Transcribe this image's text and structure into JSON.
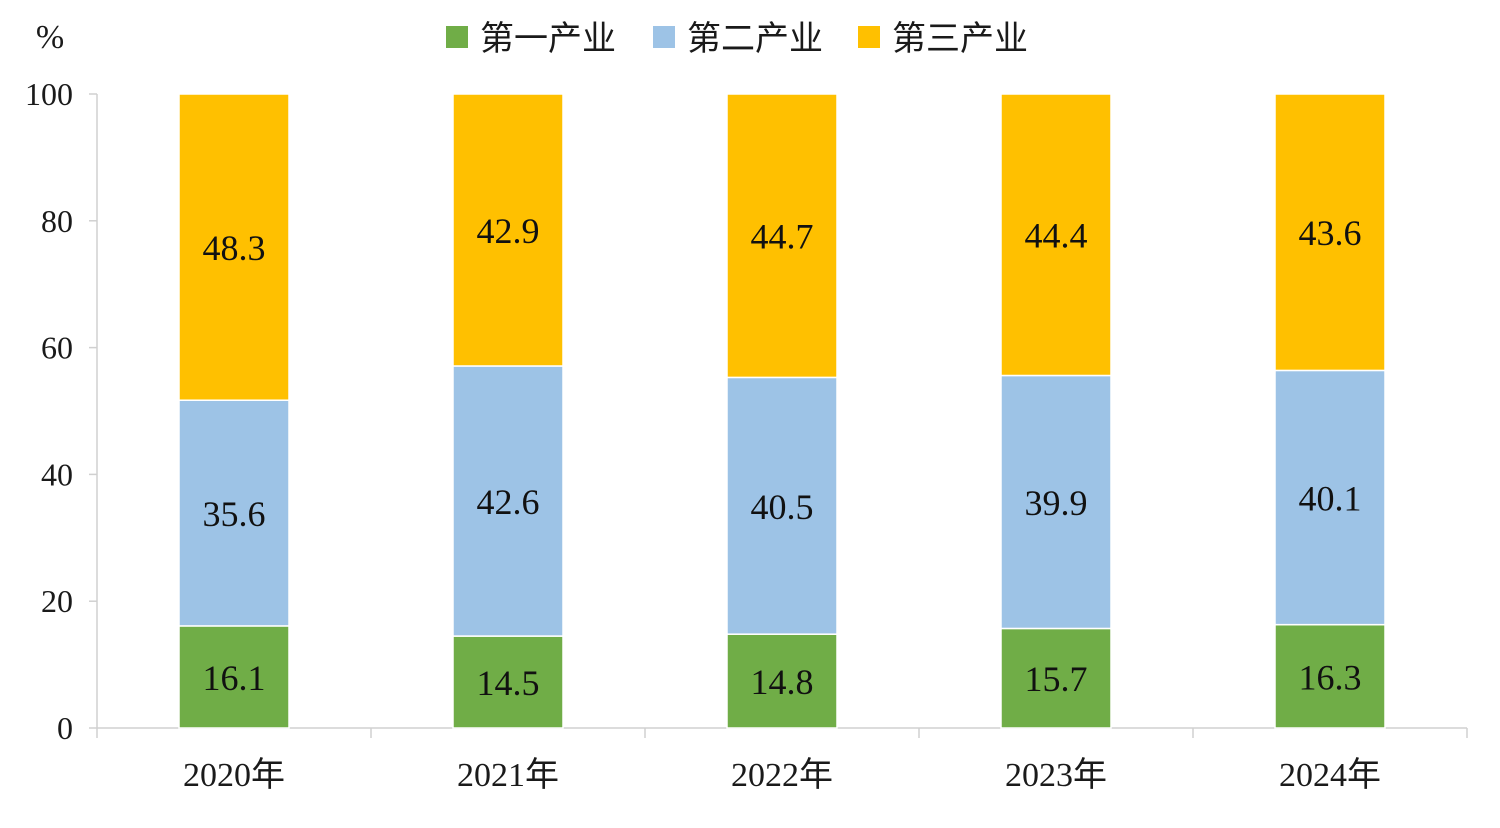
{
  "chart_data": {
    "type": "bar",
    "stacked": true,
    "unit": "%",
    "categories": [
      "2020年",
      "2021年",
      "2022年",
      "2023年",
      "2024年"
    ],
    "series": [
      {
        "name": "第一产业",
        "values": [
          16.1,
          14.5,
          14.8,
          15.7,
          16.3
        ]
      },
      {
        "name": "第二产业",
        "values": [
          35.6,
          42.6,
          40.5,
          39.9,
          40.1
        ]
      },
      {
        "name": "第三产业",
        "values": [
          48.3,
          42.9,
          44.7,
          44.4,
          43.6
        ]
      }
    ],
    "ylim": [
      0,
      100
    ],
    "yticks": [
      0,
      20,
      40,
      60,
      80,
      100
    ],
    "legend_position": "top-center",
    "grid": false
  },
  "colors": {
    "第一产业": "#70AD47",
    "第二产业": "#9DC3E6",
    "第三产业": "#FFC000",
    "axis": "#d0d0d0"
  }
}
